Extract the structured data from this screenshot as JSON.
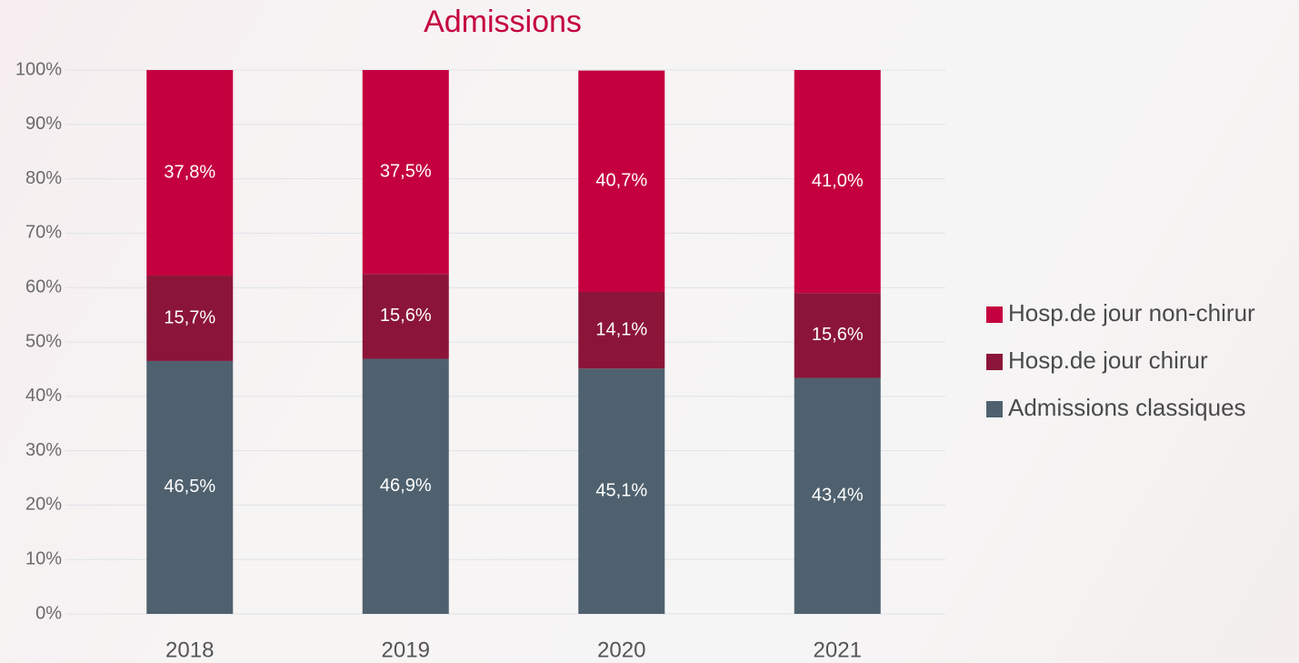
{
  "chart_data": {
    "type": "stacked_bar",
    "title": "Admissions",
    "categories": [
      "2018",
      "2019",
      "2020",
      "2021"
    ],
    "series": [
      {
        "name": "Admissions classiques",
        "color": "#4f616e",
        "values": [
          46.5,
          46.9,
          45.1,
          43.4
        ],
        "value_labels": [
          "46,5%",
          "46,9%",
          "45,1%",
          "43,4%"
        ]
      },
      {
        "name": "Hosp.de jour chirur",
        "color": "#8b1538",
        "values": [
          15.7,
          15.6,
          14.1,
          15.6
        ],
        "value_labels": [
          "15,7%",
          "15,6%",
          "14,1%",
          "15,6%"
        ]
      },
      {
        "name": "Hosp.de jour non-chirur",
        "color": "#c4003f",
        "values": [
          37.8,
          37.5,
          40.7,
          41.0
        ],
        "value_labels": [
          "37,8%",
          "37,5%",
          "40,7%",
          "41,0%"
        ]
      }
    ],
    "ylim": [
      0,
      100
    ],
    "yticks": [
      {
        "value": 0,
        "label": "0%"
      },
      {
        "value": 10,
        "label": "10%"
      },
      {
        "value": 20,
        "label": "20%"
      },
      {
        "value": 30,
        "label": "30%"
      },
      {
        "value": 40,
        "label": "40%"
      },
      {
        "value": 50,
        "label": "50%"
      },
      {
        "value": 60,
        "label": "60%"
      },
      {
        "value": 70,
        "label": "70%"
      },
      {
        "value": 80,
        "label": "80%"
      },
      {
        "value": 90,
        "label": "90%"
      },
      {
        "value": 100,
        "label": "100%"
      }
    ],
    "grid": true,
    "legend": "right",
    "title_color": "#c4003f"
  }
}
